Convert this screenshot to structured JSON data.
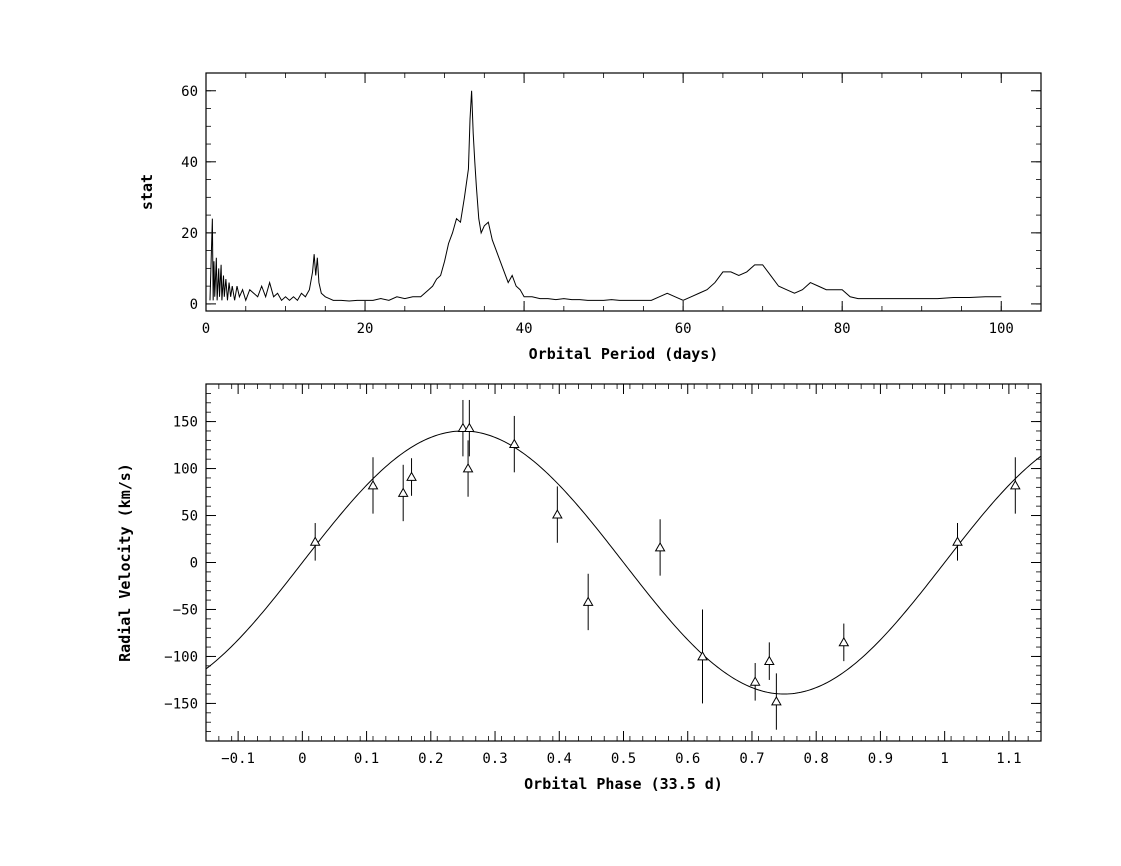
{
  "chart_data": [
    {
      "type": "line",
      "title": "",
      "xlabel": "Orbital Period (days)",
      "ylabel": "stat",
      "xlim": [
        0,
        105
      ],
      "ylim": [
        -2,
        65
      ],
      "xticks": [
        0,
        20,
        40,
        60,
        80,
        100
      ],
      "yticks": [
        0,
        20,
        40,
        60
      ],
      "x_tick_labels": [
        "0",
        "20",
        "40",
        "60",
        "80",
        "100"
      ],
      "y_tick_labels": [
        "0",
        "20",
        "40",
        "60"
      ],
      "grid": false,
      "legend": "none",
      "series": [
        {
          "x": [
            0.5,
            0.8,
            0.9,
            1.0,
            1.1,
            1.3,
            1.4,
            1.6,
            1.7,
            1.9,
            2.0,
            2.2,
            2.3,
            2.5,
            2.7,
            2.9,
            3.1,
            3.3,
            3.6,
            3.9,
            4.2,
            4.6,
            5.0,
            5.5,
            6.0,
            6.5,
            7.0,
            7.5,
            8.0,
            8.5,
            9.0,
            9.5,
            10.0,
            10.5,
            11.0,
            11.5,
            12.0,
            12.5,
            13.0,
            13.4,
            13.6,
            13.8,
            14.0,
            14.2,
            14.5,
            15.0,
            15.5,
            16.0,
            17.0,
            18.0,
            19.0,
            20.0,
            21.0,
            22.0,
            23.0,
            24.0,
            25.0,
            26.0,
            27.0,
            28.0,
            28.5,
            29.0,
            29.5,
            30.0,
            30.5,
            31.0,
            31.5,
            32.0,
            32.5,
            33.0,
            33.2,
            33.4,
            33.6,
            33.8,
            34.0,
            34.3,
            34.6,
            35.0,
            35.5,
            36.0,
            36.5,
            37.0,
            37.5,
            38.0,
            38.5,
            39.0,
            39.5,
            40.0,
            41.0,
            42.0,
            43.0,
            44.0,
            45.0,
            46.0,
            47.0,
            48.0,
            49.0,
            50.0,
            51.0,
            52.0,
            53.0,
            54.0,
            55.0,
            56.0,
            57.0,
            58.0,
            59.0,
            60.0,
            61.0,
            62.0,
            63.0,
            64.0,
            65.0,
            66.0,
            67.0,
            68.0,
            69.0,
            70.0,
            71.0,
            72.0,
            73.0,
            74.0,
            75.0,
            76.0,
            77.0,
            78.0,
            79.0,
            80.0,
            81.0,
            82.0,
            84.0,
            86.0,
            88.0,
            90.0,
            92.0,
            94.0,
            96.0,
            98.0,
            100.0
          ],
          "values": [
            1,
            24,
            1,
            12,
            2,
            13,
            1,
            10,
            2,
            11,
            1,
            8,
            2,
            7,
            1,
            6,
            2,
            5,
            1,
            5,
            2,
            4,
            1,
            4,
            3,
            2,
            5,
            2,
            6,
            2,
            3,
            1,
            2,
            1,
            2,
            1,
            3,
            2,
            4,
            9,
            14,
            8,
            13,
            6,
            3,
            2,
            1.5,
            1,
            1,
            0.8,
            1,
            1,
            1,
            1.5,
            1,
            2,
            1.5,
            2,
            2,
            4,
            5,
            7,
            8,
            12,
            17,
            20,
            24,
            23,
            30,
            38,
            52,
            60,
            48,
            40,
            33,
            24,
            20,
            22,
            23,
            18,
            15,
            12,
            9,
            6,
            8,
            5,
            4,
            2,
            2,
            1.5,
            1.5,
            1.2,
            1.5,
            1.2,
            1.2,
            1,
            1,
            1,
            1.2,
            1,
            1,
            1,
            1,
            1,
            2,
            3,
            2,
            1,
            2,
            3,
            4,
            6,
            9,
            9,
            8,
            9,
            11,
            11,
            8,
            5,
            4,
            3,
            4,
            6,
            5,
            4,
            4,
            4,
            2,
            1.5,
            1.5,
            1.5,
            1.5,
            1.5,
            1.5,
            1.8,
            1.8,
            2,
            2
          ]
        }
      ]
    },
    {
      "type": "scatter",
      "title": "",
      "xlabel": "Orbital Phase (33.5 d)",
      "ylabel": "Radial Velocity (km/s)",
      "xlim": [
        -0.15,
        1.15
      ],
      "ylim": [
        -190,
        190
      ],
      "xticks": [
        -0.1,
        0,
        0.1,
        0.2,
        0.3,
        0.4,
        0.5,
        0.6,
        0.7,
        0.8,
        0.9,
        1.0,
        1.1
      ],
      "yticks": [
        -150,
        -100,
        -50,
        0,
        50,
        100,
        150
      ],
      "x_tick_labels": [
        "−0.1",
        "0",
        "0.1",
        "0.2",
        "0.3",
        "0.4",
        "0.5",
        "0.6",
        "0.7",
        "0.8",
        "0.9",
        "1",
        "1.1"
      ],
      "y_tick_labels": [
        "−150",
        "−100",
        "−50",
        "0",
        "50",
        "100",
        "150"
      ],
      "grid": false,
      "legend": "none",
      "series": [
        {
          "marker": "triangle",
          "points": [
            {
              "x": 0.02,
              "y": 22,
              "err": 20
            },
            {
              "x": 0.11,
              "y": 82,
              "err": 30
            },
            {
              "x": 0.157,
              "y": 74,
              "err": 30
            },
            {
              "x": 0.17,
              "y": 91,
              "err": 20
            },
            {
              "x": 0.25,
              "y": 143,
              "err": 30
            },
            {
              "x": 0.258,
              "y": 100,
              "err": 30
            },
            {
              "x": 0.26,
              "y": 143,
              "err": 30
            },
            {
              "x": 0.33,
              "y": 126,
              "err": 30
            },
            {
              "x": 0.397,
              "y": 51,
              "err": 30
            },
            {
              "x": 0.445,
              "y": -42,
              "err": 30
            },
            {
              "x": 0.557,
              "y": 16,
              "err": 30
            },
            {
              "x": 0.623,
              "y": -100,
              "err": 50
            },
            {
              "x": 0.705,
              "y": -127,
              "err": 20
            },
            {
              "x": 0.727,
              "y": -105,
              "err": 20
            },
            {
              "x": 0.738,
              "y": -148,
              "err": 30
            },
            {
              "x": 0.843,
              "y": -85,
              "err": 20
            },
            {
              "x": 1.02,
              "y": 22,
              "err": 20
            },
            {
              "x": 1.11,
              "y": 82,
              "err": 30
            }
          ]
        },
        {
          "type": "sine-fit",
          "amplitude": 140,
          "period": 1.0,
          "offset": 0
        }
      ]
    }
  ]
}
